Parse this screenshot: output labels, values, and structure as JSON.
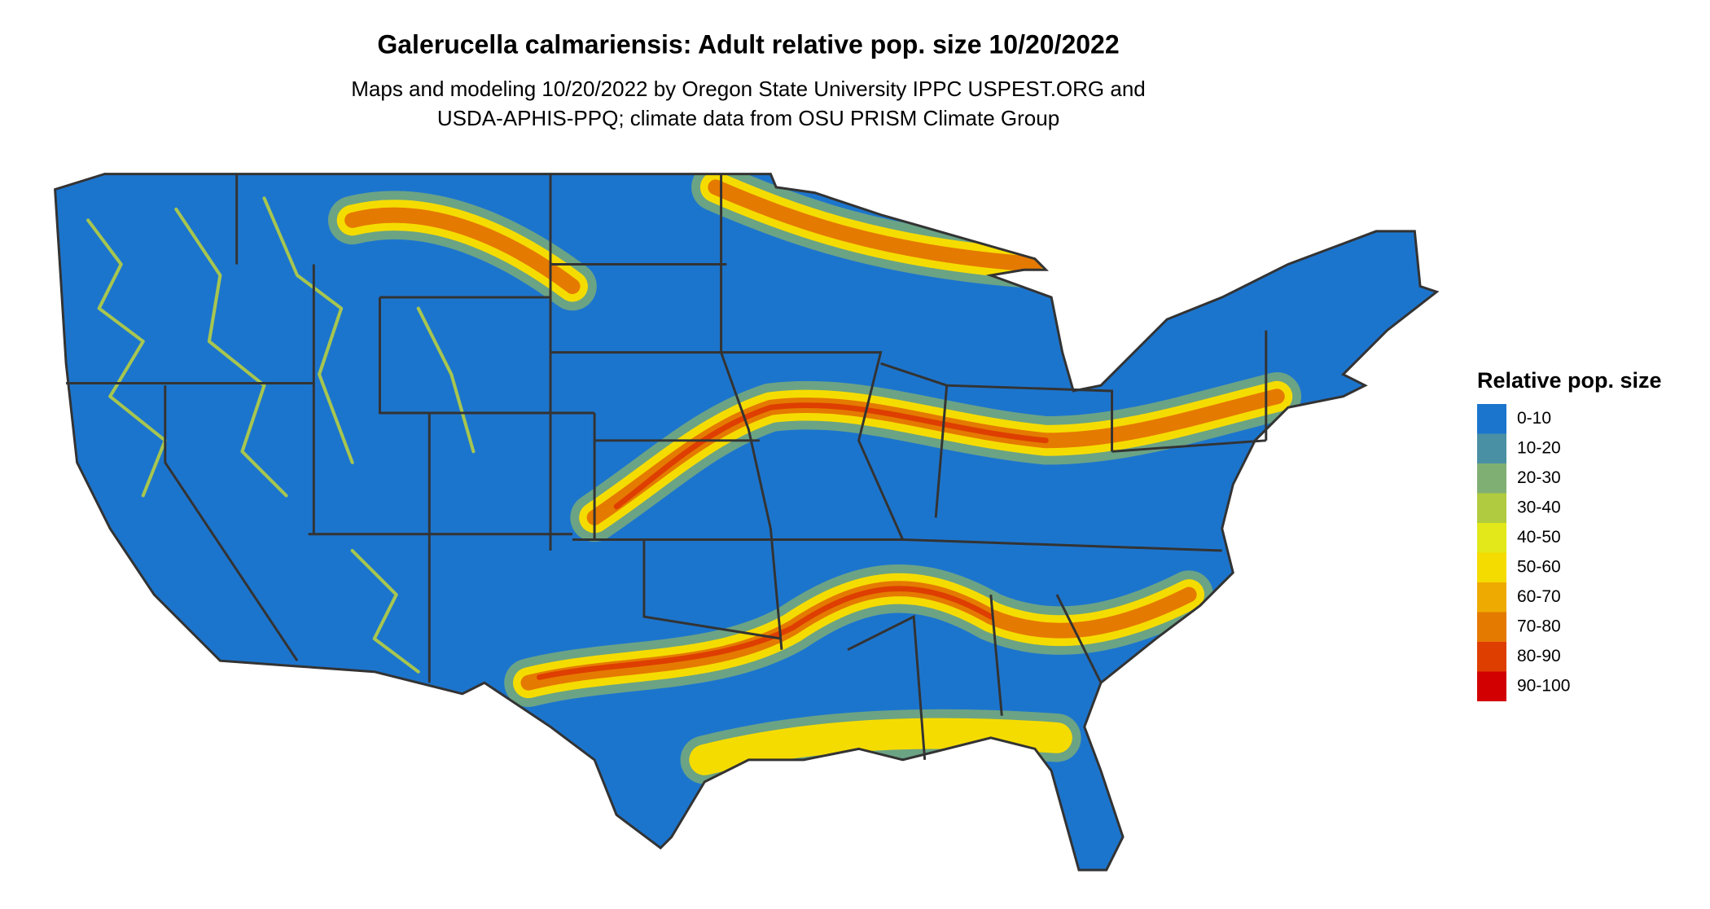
{
  "title": "Galerucella calmariensis: Adult relative pop. size 10/20/2022",
  "subtitle": [
    "Maps and modeling 10/20/2022 by Oregon State University IPPC USPEST.ORG and",
    "USDA-APHIS-PPQ; climate data from OSU PRISM Climate Group"
  ],
  "legend": {
    "title": "Relative pop. size",
    "items": [
      {
        "label": "0-10",
        "color": "#1c75cd"
      },
      {
        "label": "10-20",
        "color": "#4a90a4"
      },
      {
        "label": "20-30",
        "color": "#80af73"
      },
      {
        "label": "30-40",
        "color": "#b0cb3f"
      },
      {
        "label": "40-50",
        "color": "#e2e81a"
      },
      {
        "label": "50-60",
        "color": "#f5dc00"
      },
      {
        "label": "60-70",
        "color": "#eeaa00"
      },
      {
        "label": "70-80",
        "color": "#e57a00"
      },
      {
        "label": "80-90",
        "color": "#de3e00"
      },
      {
        "label": "90-100",
        "color": "#d20000"
      }
    ]
  }
}
